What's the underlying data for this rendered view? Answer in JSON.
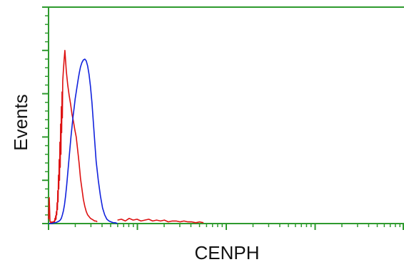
{
  "chart_data": {
    "type": "line",
    "title": "",
    "xlabel": "CENPH",
    "ylabel": "Events",
    "xscale": "log",
    "grid": false,
    "legend": "none",
    "axis_color": "#2e9a2e",
    "series": [
      {
        "color": "#dd1111",
        "x": [
          0.0,
          0.2,
          0.4,
          0.6,
          0.8,
          1.0,
          1.15,
          1.3,
          1.45,
          1.6,
          1.7,
          1.8,
          1.9,
          2.0,
          2.1,
          2.2,
          2.3,
          2.4,
          2.5,
          2.6,
          2.7,
          2.8,
          2.9,
          3.0,
          3.1,
          3.2,
          3.3,
          3.4,
          3.5,
          3.6,
          3.7,
          3.8,
          3.9,
          4.0,
          4.2,
          4.4,
          4.6,
          4.8,
          5.0,
          5.4,
          5.8,
          6.2,
          6.6,
          7.0,
          7.4,
          7.8,
          8.2,
          8.6,
          9.0,
          9.4,
          9.8,
          10.2,
          10.6,
          11.0,
          11.4,
          11.8,
          12.2,
          12.6,
          13.0,
          13.4,
          13.7
        ],
        "values": [
          5,
          30,
          3,
          1,
          2,
          1,
          2,
          1,
          2,
          3,
          2,
          6,
          4,
          9,
          5,
          14,
          10,
          24,
          16,
          38,
          25,
          56,
          40,
          74,
          50,
          94,
          65,
          115,
          80,
          135,
          105,
          152,
          122,
          165,
          178,
          190,
          200,
          188,
          176,
          160,
          148,
          138,
          126,
          118,
          108,
          100,
          85,
          70,
          52,
          40,
          28,
          20,
          14,
          10,
          8,
          6,
          5,
          4,
          3,
          3,
          2
        ]
      },
      {
        "color": "#1122dd",
        "x": [
          0.0,
          1.0,
          1.5,
          2.0,
          2.5,
          3.0,
          3.3,
          3.6,
          3.9,
          4.2,
          4.5,
          4.8,
          5.1,
          5.4,
          5.7,
          6.0,
          6.3,
          6.6,
          6.9,
          7.2,
          7.5,
          7.8,
          8.1,
          8.4,
          8.7,
          9.0,
          9.4,
          9.8,
          10.2,
          10.6,
          11.0,
          11.4,
          11.8,
          12.2,
          12.6,
          13.0,
          13.4,
          14.0,
          14.6,
          15.2,
          15.8,
          16.4,
          17.0,
          17.6,
          18.2,
          18.8,
          19.4
        ],
        "values": [
          0,
          0,
          1,
          1,
          2,
          3,
          4,
          6,
          10,
          15,
          22,
          32,
          44,
          58,
          72,
          86,
          100,
          112,
          124,
          134,
          144,
          152,
          160,
          168,
          175,
          181,
          186,
          189,
          190,
          188,
          182,
          172,
          158,
          140,
          118,
          95,
          72,
          50,
          32,
          18,
          10,
          5,
          3,
          2,
          1,
          1,
          0
        ]
      },
      {
        "color": "#dd1111",
        "x": [
          19.4,
          20.5,
          21.6,
          22.7,
          23.8,
          24.9,
          26.0,
          27.1,
          28.2,
          29.3,
          30.4,
          31.5,
          32.6,
          33.7,
          34.8,
          35.9,
          37.0,
          38.1,
          39.2,
          40.3,
          41.4,
          42.5,
          43.6
        ],
        "values": [
          4,
          5,
          3,
          6,
          4,
          5,
          3,
          4,
          5,
          3,
          4,
          3,
          4,
          2,
          3,
          3,
          2,
          3,
          2,
          2,
          1,
          2,
          1
        ]
      }
    ],
    "xlim": [
      0,
      100
    ],
    "ylim": [
      0,
      250
    ]
  }
}
